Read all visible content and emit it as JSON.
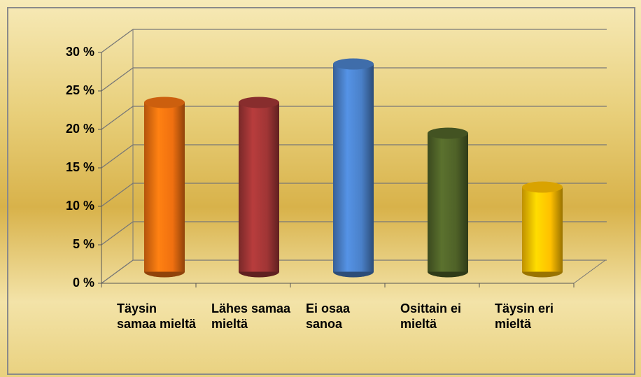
{
  "chart_data": {
    "type": "bar",
    "categories": [
      "Täysin samaa mieltä",
      "Lähes samaa mieltä",
      "Ei osaa sanoa",
      "Osittain ei mieltä",
      "Täysin eri mieltä"
    ],
    "values": [
      22,
      22,
      27,
      18,
      11
    ],
    "colors": [
      "#f07010",
      "#a03535",
      "#4a80c8",
      "#4f6228",
      "#ffc000"
    ],
    "ylim": [
      0,
      30
    ],
    "yticks": [
      {
        "value": 0,
        "label": "0 %"
      },
      {
        "value": 5,
        "label": "5 %"
      },
      {
        "value": 10,
        "label": "10 %"
      },
      {
        "value": 15,
        "label": "15 %"
      },
      {
        "value": 20,
        "label": "20 %"
      },
      {
        "value": 25,
        "label": "25 %"
      },
      {
        "value": 30,
        "label": "30 %"
      }
    ],
    "grid": true
  }
}
